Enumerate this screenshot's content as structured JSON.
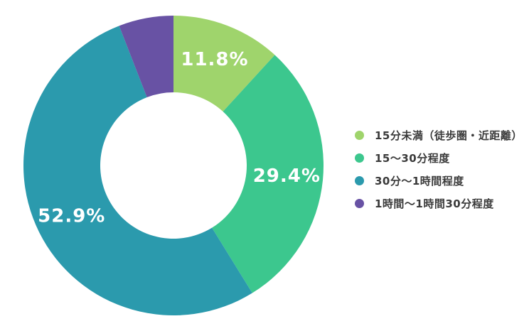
{
  "chart_data": {
    "type": "pie",
    "subtype": "donut",
    "title": "",
    "unit": "%",
    "direction": "clockwise",
    "start_angle_deg": 0,
    "legend_position": "right",
    "background_color": "#ffffff",
    "data_label_color": "#ffffff",
    "legend_text_color": "#3a3a3a",
    "slices": [
      {
        "label": "15分未満（徒歩圏・近距離）",
        "value": 11.8,
        "data_label": "11.8%",
        "color": "#9fd46c"
      },
      {
        "label": "15～30分程度",
        "value": 29.4,
        "data_label": "29.4%",
        "color": "#3cc78e"
      },
      {
        "label": "30分～1時間程度",
        "value": 52.9,
        "data_label": "52.9%",
        "color": "#2b9aad"
      },
      {
        "label": "1時間～1時間30分程度",
        "value": 5.9,
        "data_label": "",
        "color": "#6852a4"
      }
    ]
  }
}
